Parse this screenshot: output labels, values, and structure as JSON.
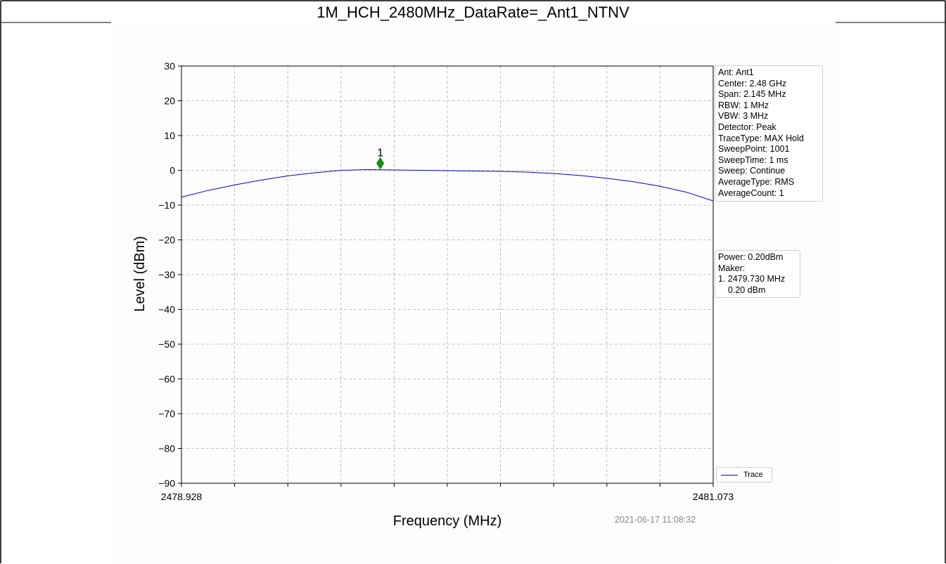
{
  "title": "1M_HCH_2480MHz_DataRate=_Ant1_NTNV",
  "timestamp": "2021-06-17 11:08:32",
  "info_panel": [
    "Ant: Ant1",
    "Center: 2.48 GHz",
    "Span: 2.145 MHz",
    "RBW: 1 MHz",
    "VBW: 3 MHz",
    "Detector: Peak",
    "TraceType: MAX Hold",
    "SweepPoint: 1001",
    "SweepTime: 1 ms",
    "Sweep: Continue",
    "AverageType: RMS",
    "AverageCount: 1"
  ],
  "marker_panel": [
    "Power: 0.20dBm",
    "Maker:",
    "1. 2479.730 MHz",
    "    0.20 dBm"
  ],
  "colors": {
    "trace": "#0000cc",
    "marker": "#1a8a1a",
    "grid": "#b0b0b0"
  },
  "chart_data": {
    "type": "line",
    "title": "1M_HCH_2480MHz_DataRate=_Ant1_NTNV",
    "xlabel": "Frequency (MHz)",
    "ylabel": "Level (dBm)",
    "xlim": [
      2478.928,
      2481.073
    ],
    "ylim": [
      -90,
      30
    ],
    "x_tick_labels": [
      "2478.928",
      "2481.073"
    ],
    "y_ticks": [
      30,
      20,
      10,
      0,
      -10,
      -20,
      -30,
      -40,
      -50,
      -60,
      -70,
      -80,
      -90
    ],
    "x_grid_divisions": 10,
    "grid": true,
    "legend": {
      "position": "bottom-right",
      "entries": [
        "Trace"
      ]
    },
    "series": [
      {
        "name": "Trace",
        "x": [
          2478.928,
          2479.035,
          2479.143,
          2479.25,
          2479.357,
          2479.465,
          2479.572,
          2479.679,
          2479.786,
          2479.894,
          2480.001,
          2480.108,
          2480.216,
          2480.323,
          2480.43,
          2480.537,
          2480.645,
          2480.752,
          2480.859,
          2480.966,
          2481.073
        ],
        "y": [
          -7.7,
          -5.8,
          -4.2,
          -2.8,
          -1.6,
          -0.7,
          0.0,
          0.2,
          0.1,
          0.0,
          -0.1,
          -0.2,
          -0.3,
          -0.5,
          -0.9,
          -1.5,
          -2.3,
          -3.3,
          -4.6,
          -6.3,
          -8.8
        ]
      }
    ],
    "markers": [
      {
        "label": "1",
        "x": 2479.73,
        "y": 0.2
      }
    ]
  }
}
